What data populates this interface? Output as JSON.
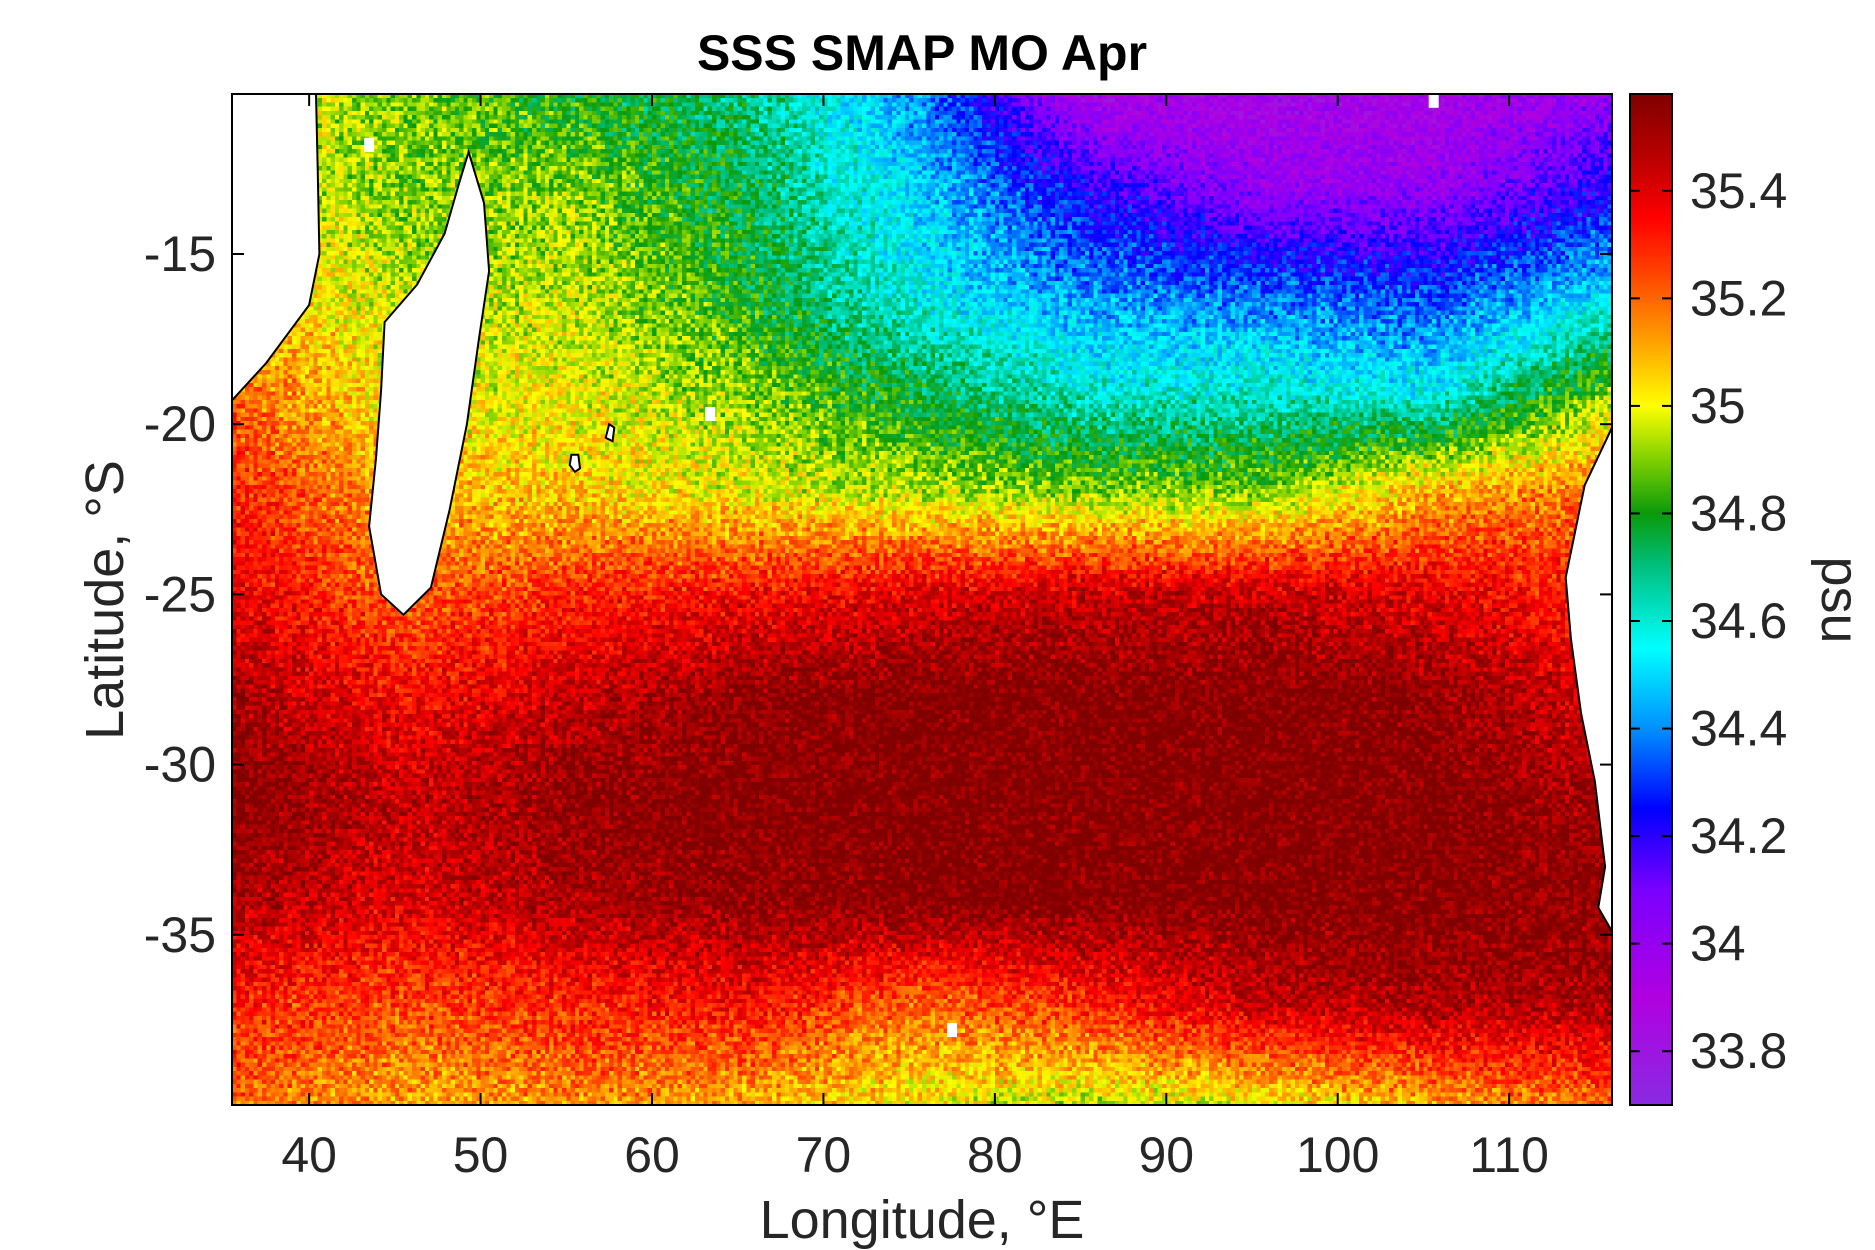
{
  "chart_data": {
    "type": "heatmap",
    "title": "SSS SMAP MO Apr",
    "xlabel": "Longitude, °E",
    "ylabel": "Latitude, °S",
    "colorbar_label": "psu",
    "xlim": [
      35.5,
      116
    ],
    "ylim": [
      -40,
      -10.3
    ],
    "x_ticks": [
      40,
      50,
      60,
      70,
      80,
      90,
      100,
      110
    ],
    "x_tick_labels": [
      "40",
      "50",
      "60",
      "70",
      "80",
      "90",
      "100",
      "110"
    ],
    "y_ticks": [
      -15,
      -20,
      -25,
      -30,
      -35
    ],
    "y_tick_labels": [
      "-15",
      "-20",
      "-25",
      "-30",
      "-35"
    ],
    "clim": [
      33.7,
      35.58
    ],
    "colorbar_ticks": [
      35.4,
      35.2,
      35.0,
      34.8,
      34.6,
      34.4,
      34.2,
      34.0,
      33.8
    ],
    "colorbar_tick_labels": [
      "35.4",
      "35.2",
      "35",
      "34.8",
      "34.6",
      "34.4",
      "34.2",
      "34",
      "33.8"
    ],
    "colormap": [
      {
        "value": 33.7,
        "color": "#8a2be2"
      },
      {
        "value": 33.9,
        "color": "#b000e0"
      },
      {
        "value": 34.1,
        "color": "#7a00ff"
      },
      {
        "value": 34.25,
        "color": "#0000ff"
      },
      {
        "value": 34.4,
        "color": "#0090ff"
      },
      {
        "value": 34.55,
        "color": "#00ffff"
      },
      {
        "value": 34.7,
        "color": "#00c080"
      },
      {
        "value": 34.8,
        "color": "#0a9a0a"
      },
      {
        "value": 34.9,
        "color": "#7fd000"
      },
      {
        "value": 35.0,
        "color": "#ffff00"
      },
      {
        "value": 35.12,
        "color": "#ffa000"
      },
      {
        "value": 35.25,
        "color": "#ff4000"
      },
      {
        "value": 35.35,
        "color": "#ff0000"
      },
      {
        "value": 35.45,
        "color": "#c00000"
      },
      {
        "value": 35.58,
        "color": "#800000"
      }
    ],
    "salinity_grid": {
      "lon": [
        35.5,
        45.5,
        55.5,
        65.5,
        75.5,
        85.5,
        95.5,
        105.5,
        116
      ],
      "lat": [
        -10.3,
        -13,
        -16,
        -19,
        -22,
        -25,
        -28,
        -31,
        -34,
        -37,
        -40
      ],
      "values": [
        [
          35.0,
          34.9,
          34.8,
          34.7,
          34.4,
          33.9,
          33.9,
          33.9,
          34.0
        ],
        [
          35.0,
          34.9,
          34.9,
          34.75,
          34.5,
          34.2,
          34.0,
          34.0,
          34.2
        ],
        [
          35.1,
          34.95,
          34.95,
          34.8,
          34.55,
          34.4,
          34.35,
          34.3,
          34.5
        ],
        [
          35.2,
          35.0,
          35.0,
          34.9,
          34.75,
          34.6,
          34.6,
          34.55,
          34.9
        ],
        [
          35.3,
          35.1,
          35.05,
          35.0,
          34.95,
          34.9,
          34.9,
          35.1,
          35.2
        ],
        [
          35.4,
          35.2,
          35.3,
          35.35,
          35.4,
          35.45,
          35.45,
          35.4,
          35.3
        ],
        [
          35.5,
          35.35,
          35.45,
          35.55,
          35.58,
          35.58,
          35.58,
          35.55,
          35.4
        ],
        [
          35.58,
          35.45,
          35.55,
          35.58,
          35.58,
          35.58,
          35.58,
          35.58,
          35.5
        ],
        [
          35.5,
          35.4,
          35.5,
          35.55,
          35.58,
          35.58,
          35.58,
          35.58,
          35.55
        ],
        [
          35.3,
          35.25,
          35.3,
          35.35,
          35.2,
          35.3,
          35.45,
          35.5,
          35.5
        ],
        [
          35.2,
          35.1,
          35.15,
          35.1,
          35.0,
          34.95,
          35.0,
          35.1,
          35.2
        ]
      ]
    },
    "land": [
      {
        "name": "Madagascar",
        "lonlat": [
          [
            49.3,
            -12.0
          ],
          [
            50.2,
            -13.5
          ],
          [
            50.5,
            -15.5
          ],
          [
            49.9,
            -17.5
          ],
          [
            49.2,
            -20.0
          ],
          [
            48.2,
            -22.5
          ],
          [
            47.1,
            -24.8
          ],
          [
            45.5,
            -25.6
          ],
          [
            44.2,
            -25.0
          ],
          [
            43.5,
            -23.0
          ],
          [
            43.9,
            -21.0
          ],
          [
            44.2,
            -19.0
          ],
          [
            44.4,
            -17.0
          ],
          [
            46.3,
            -15.9
          ],
          [
            47.9,
            -14.4
          ],
          [
            48.7,
            -13.0
          ]
        ]
      },
      {
        "name": "Africa",
        "lonlat": [
          [
            35.5,
            -10.3
          ],
          [
            40.4,
            -10.3
          ],
          [
            40.5,
            -12.5
          ],
          [
            40.6,
            -15.0
          ],
          [
            40.0,
            -16.5
          ],
          [
            37.5,
            -18.2
          ],
          [
            35.5,
            -19.3
          ]
        ]
      },
      {
        "name": "Australia",
        "lonlat": [
          [
            116.0,
            -20.1
          ],
          [
            114.4,
            -21.8
          ],
          [
            113.3,
            -24.5
          ],
          [
            113.6,
            -26.3
          ],
          [
            114.2,
            -28.5
          ],
          [
            115.0,
            -30.5
          ],
          [
            115.6,
            -33.0
          ],
          [
            115.2,
            -34.2
          ],
          [
            116.0,
            -34.9
          ]
        ]
      },
      {
        "name": "Reunion",
        "lonlat": [
          [
            55.3,
            -20.9
          ],
          [
            55.7,
            -20.9
          ],
          [
            55.8,
            -21.3
          ],
          [
            55.5,
            -21.4
          ],
          [
            55.2,
            -21.2
          ]
        ]
      },
      {
        "name": "Mauritius",
        "lonlat": [
          [
            57.5,
            -20.0
          ],
          [
            57.8,
            -20.1
          ],
          [
            57.7,
            -20.5
          ],
          [
            57.3,
            -20.4
          ]
        ]
      }
    ],
    "masked_spots": [
      {
        "lon": 63.4,
        "lat": -19.7
      },
      {
        "lon": 77.5,
        "lat": -37.8
      },
      {
        "lon": 105.6,
        "lat": -10.5
      },
      {
        "lon": 43.5,
        "lat": -11.8
      }
    ]
  }
}
